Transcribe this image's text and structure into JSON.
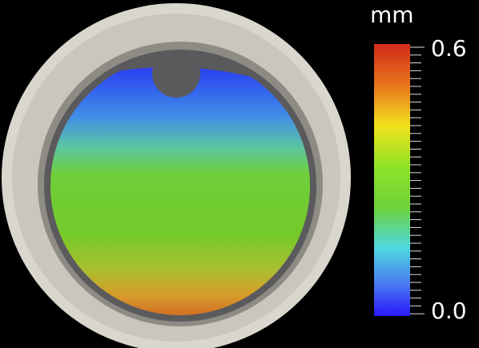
{
  "colorbar": {
    "unit": "mm",
    "max_label": "0.6",
    "min_label": "0.0"
  }
}
